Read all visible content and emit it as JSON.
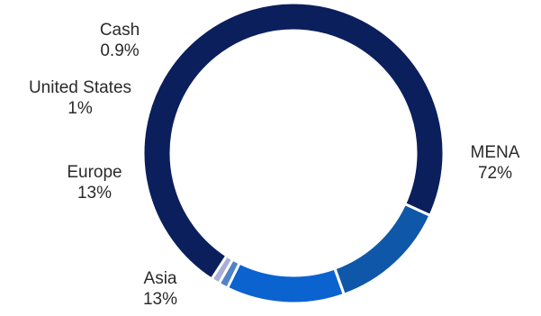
{
  "chart_data": {
    "type": "pie",
    "variant": "donut",
    "title": "",
    "slices": [
      {
        "label": "MENA",
        "value_label": "72%",
        "value": 72.0,
        "color": "#0b1f5c"
      },
      {
        "label": "Asia",
        "value_label": "13%",
        "value": 12.6,
        "color": "#0f57a8"
      },
      {
        "label": "Europe",
        "value_label": "13%",
        "value": 12.6,
        "color": "#0b63cf"
      },
      {
        "label": "United States",
        "value_label": "1%",
        "value": 1.0,
        "color": "#4f83c7"
      },
      {
        "label": "Cash",
        "value_label": "0.9%",
        "value": 0.9,
        "color": "#a8aed8"
      }
    ],
    "legend": "none"
  }
}
